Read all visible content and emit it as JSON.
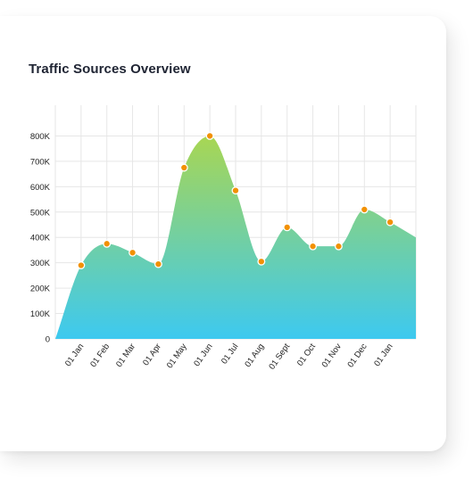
{
  "card": {
    "title": "Traffic Sources Overview"
  },
  "chart_data": {
    "type": "area",
    "title": "Traffic Sources Overview",
    "xlabel": "",
    "ylabel": "",
    "categories": [
      "",
      "01 Jan",
      "01 Feb",
      "01 Mar",
      "01 Apr",
      "01 May",
      "01 Jun",
      "01 Jul",
      "01 Aug",
      "01 Sept",
      "01 Oct",
      "01 Nov",
      "01 Dec",
      "01 Jan",
      ""
    ],
    "values": [
      0,
      290,
      375,
      340,
      295,
      675,
      800,
      585,
      305,
      440,
      365,
      365,
      510,
      460,
      400
    ],
    "markers": [
      false,
      true,
      true,
      true,
      true,
      true,
      true,
      true,
      true,
      true,
      true,
      true,
      true,
      true,
      false
    ],
    "yticks": [
      0,
      100,
      200,
      300,
      400,
      500,
      600,
      700,
      800
    ],
    "ytick_labels": [
      "0",
      "100K",
      "200K",
      "300K",
      "400K",
      "500K",
      "600K",
      "700K",
      "800K"
    ],
    "ylim": [
      0,
      900
    ],
    "unit": "K",
    "grid": true,
    "legend": "none",
    "fill_gradient": [
      "#a8d653",
      "#3dc9f0"
    ],
    "marker_color": "#f29104",
    "marker_stroke": "#ffffff"
  }
}
